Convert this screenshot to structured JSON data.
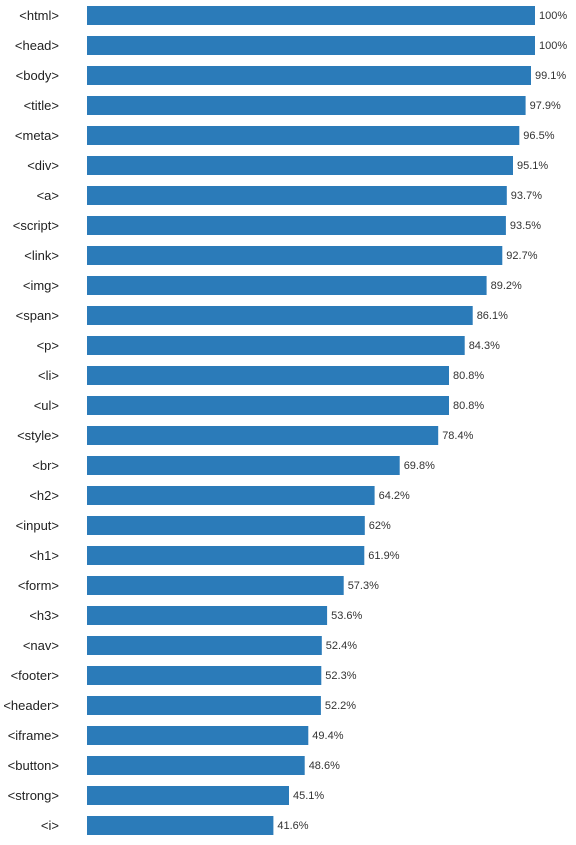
{
  "colors": {
    "bar": "#2b7bb9"
  },
  "chart_data": {
    "type": "bar",
    "orientation": "horizontal",
    "categories": [
      "<html>",
      "<head>",
      "<body>",
      "<title>",
      "<meta>",
      "<div>",
      "<a>",
      "<script>",
      "<link>",
      "<img>",
      "<span>",
      "<p>",
      "<li>",
      "<ul>",
      "<style>",
      "<br>",
      "<h2>",
      "<input>",
      "<h1>",
      "<form>",
      "<h3>",
      "<nav>",
      "<footer>",
      "<header>",
      "<iframe>",
      "<button>",
      "<strong>",
      "<i>"
    ],
    "values": [
      100,
      100,
      99.1,
      97.9,
      96.5,
      95.1,
      93.7,
      93.5,
      92.7,
      89.2,
      86.1,
      84.3,
      80.8,
      80.8,
      78.4,
      69.8,
      64.2,
      62,
      61.9,
      57.3,
      53.6,
      52.4,
      52.3,
      52.2,
      49.4,
      48.6,
      45.1,
      41.6
    ],
    "value_labels": [
      "100%",
      "100%",
      "99.1%",
      "97.9%",
      "96.5%",
      "95.1%",
      "93.7%",
      "93.5%",
      "92.7%",
      "89.2%",
      "86.1%",
      "84.3%",
      "80.8%",
      "80.8%",
      "78.4%",
      "69.8%",
      "64.2%",
      "62%",
      "61.9%",
      "57.3%",
      "53.6%",
      "52.4%",
      "52.3%",
      "52.2%",
      "49.4%",
      "48.6%",
      "45.1%",
      "41.6%"
    ],
    "xlim": [
      0,
      100
    ],
    "grid": false,
    "legend": "none"
  }
}
